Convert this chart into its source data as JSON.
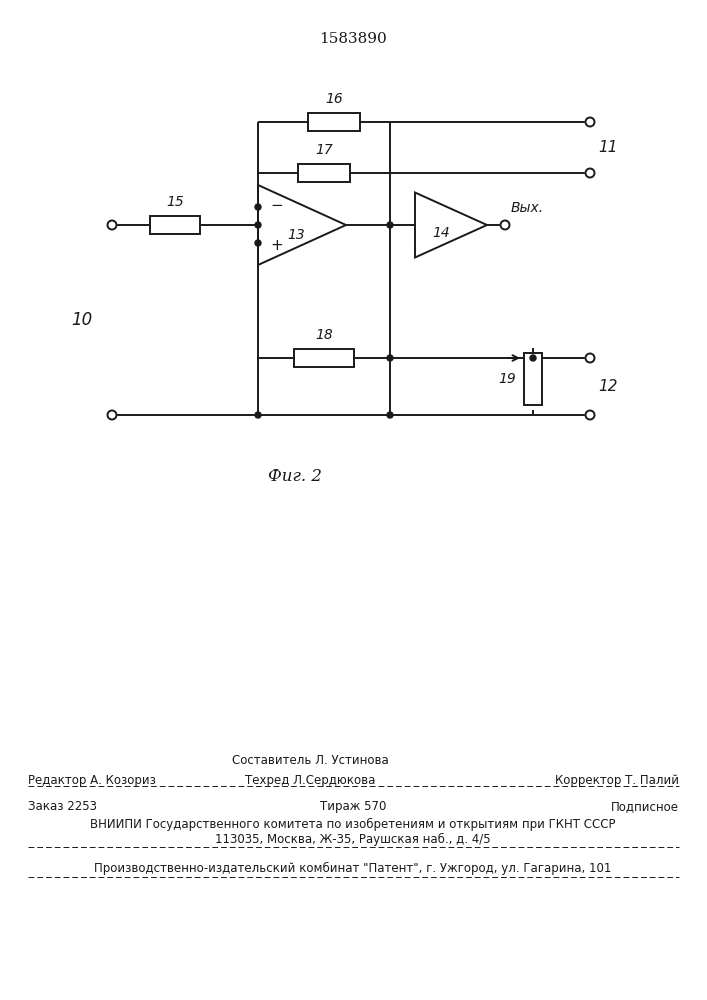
{
  "title": "1583890",
  "fig_label": "Фиг. 2",
  "bg_color": "#ffffff",
  "line_color": "#1a1a1a",
  "line_width": 1.4,
  "footer_sestavitel": "Составитель Л. Устинова",
  "footer_redaktor": "Редактор А. Козориз",
  "footer_tehred": "Техред Л.Сердюкова",
  "footer_korrektor": "Корректор Т. Палий",
  "footer_zakaz": "Заказ 2253",
  "footer_tirazh": "Тираж 570",
  "footer_podpisnoe": "Подписное",
  "footer_vniip1": "ВНИИПИ Государственного комитета по изобретениям и открытиям при ГКНТ СССР",
  "footer_vniip2": "113035, Москва, Ж-35, Раушская наб., д. 4/5",
  "footer_proizv": "Производственно-издательский комбинат \"Патент\", г. Ужгород, ул. Гагарина, 101"
}
